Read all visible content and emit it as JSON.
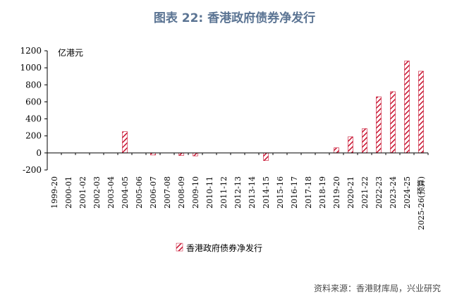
{
  "title": "图表 22: 香港政府债券净发行",
  "source": "资料来源：香港财库局，兴业研究",
  "colors": {
    "title": "#5b7493",
    "bar": "#c8102e"
  },
  "chart_data": {
    "type": "bar",
    "unit_label": "亿港元",
    "ylim": [
      -200,
      1200
    ],
    "yticks": [
      -200,
      0,
      200,
      400,
      600,
      800,
      1000,
      1200
    ],
    "ytick_labels": [
      "-200",
      "0",
      "200",
      "400",
      "600",
      "800",
      "1000",
      "1200"
    ],
    "grid": false,
    "legend_position": "bottom",
    "categories": [
      "1999-20",
      "2000-01",
      "2001-02",
      "2002-03",
      "2003-04",
      "2004-05",
      "2005-06",
      "2006-07",
      "2007-08",
      "2008-09",
      "2009-10",
      "2010-11",
      "2011-12",
      "2012-13",
      "2013-14",
      "2014-15",
      "2015-16",
      "2016-17",
      "2017-18",
      "2018-19",
      "2019-20",
      "2020-21",
      "2021-22",
      "2022-23",
      "2023-24",
      "2024-25",
      "2025-26(预算)"
    ],
    "series": [
      {
        "name": "香港政府债券净发行",
        "pattern": "diagonal-hatch",
        "values": [
          0,
          0,
          0,
          0,
          0,
          250,
          0,
          -25,
          0,
          -30,
          -35,
          0,
          0,
          0,
          0,
          -90,
          0,
          0,
          0,
          0,
          60,
          190,
          285,
          660,
          720,
          1080,
          960
        ]
      }
    ]
  }
}
